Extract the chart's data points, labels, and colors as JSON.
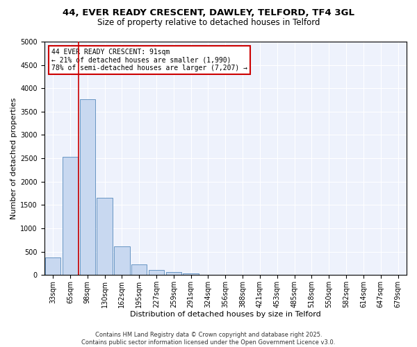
{
  "title1": "44, EVER READY CRESCENT, DAWLEY, TELFORD, TF4 3GL",
  "title2": "Size of property relative to detached houses in Telford",
  "xlabel": "Distribution of detached houses by size in Telford",
  "ylabel": "Number of detached properties",
  "categories": [
    "33sqm",
    "65sqm",
    "98sqm",
    "130sqm",
    "162sqm",
    "195sqm",
    "227sqm",
    "259sqm",
    "291sqm",
    "324sqm",
    "356sqm",
    "388sqm",
    "421sqm",
    "453sqm",
    "485sqm",
    "518sqm",
    "550sqm",
    "582sqm",
    "614sqm",
    "647sqm",
    "679sqm"
  ],
  "values": [
    380,
    2530,
    3760,
    1650,
    620,
    230,
    105,
    60,
    40,
    0,
    0,
    0,
    0,
    0,
    0,
    0,
    0,
    0,
    0,
    0,
    0
  ],
  "bar_color": "#c8d8f0",
  "bar_edge_color": "#5588bb",
  "vline_color": "#cc0000",
  "vline_x": 2.5,
  "annotation_text": "44 EVER READY CRESCENT: 91sqm\n← 21% of detached houses are smaller (1,990)\n78% of semi-detached houses are larger (7,207) →",
  "annotation_box_color": "#cc0000",
  "ylim": [
    0,
    5000
  ],
  "yticks": [
    0,
    500,
    1000,
    1500,
    2000,
    2500,
    3000,
    3500,
    4000,
    4500,
    5000
  ],
  "background_color": "#eef2fc",
  "grid_color": "#ffffff",
  "footer": "Contains HM Land Registry data © Crown copyright and database right 2025.\nContains public sector information licensed under the Open Government Licence v3.0.",
  "title1_fontsize": 9.5,
  "title2_fontsize": 8.5,
  "xlabel_fontsize": 8,
  "ylabel_fontsize": 8,
  "tick_fontsize": 7,
  "annotation_fontsize": 7,
  "footer_fontsize": 6
}
